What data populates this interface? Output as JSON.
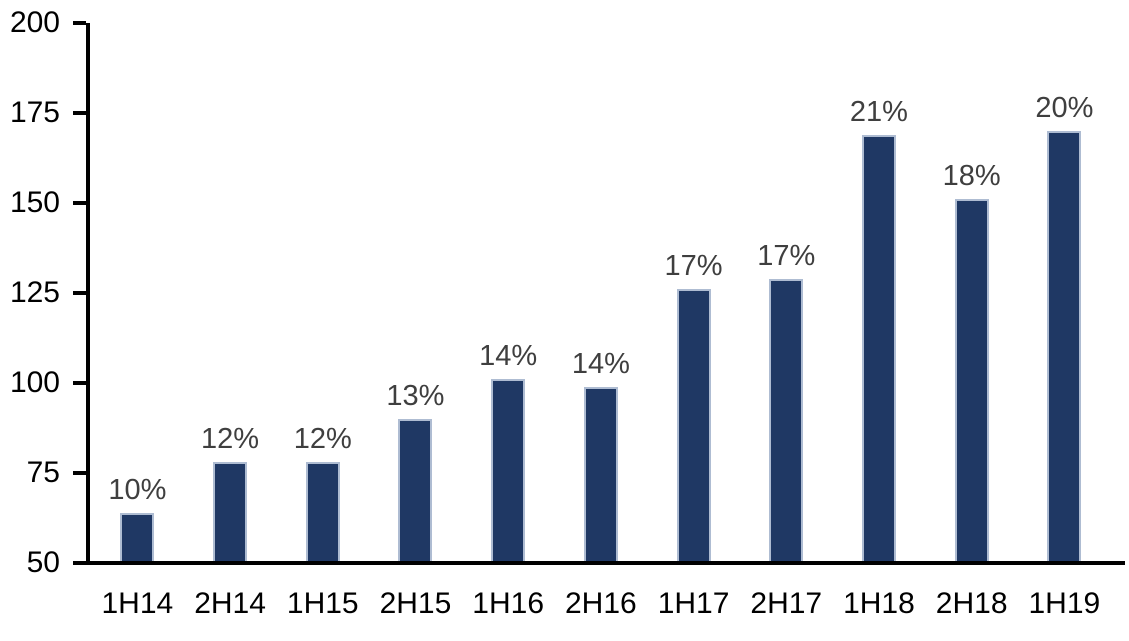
{
  "chart_data": {
    "type": "bar",
    "title": "",
    "xlabel": "",
    "ylabel": "",
    "categories": [
      "1H14",
      "2H14",
      "1H15",
      "2H15",
      "1H16",
      "2H16",
      "1H17",
      "2H17",
      "1H18",
      "2H18",
      "1H19"
    ],
    "values": [
      64,
      78,
      78,
      90,
      101,
      99,
      126,
      129,
      169,
      151,
      170
    ],
    "data_labels": [
      "10%",
      "12%",
      "12%",
      "13%",
      "14%",
      "14%",
      "17%",
      "17%",
      "21%",
      "18%",
      "20%"
    ],
    "yticks": [
      200,
      175,
      150,
      125,
      100,
      75,
      50
    ],
    "ylim": [
      50,
      200
    ],
    "grid": false,
    "legend_position": "none",
    "colors": {
      "bar_fill": "#1F3864",
      "bar_border": "#AEBCD2",
      "data_label": "#3F3F3F",
      "axis": "#000000",
      "background": "#FFFFFF"
    }
  }
}
